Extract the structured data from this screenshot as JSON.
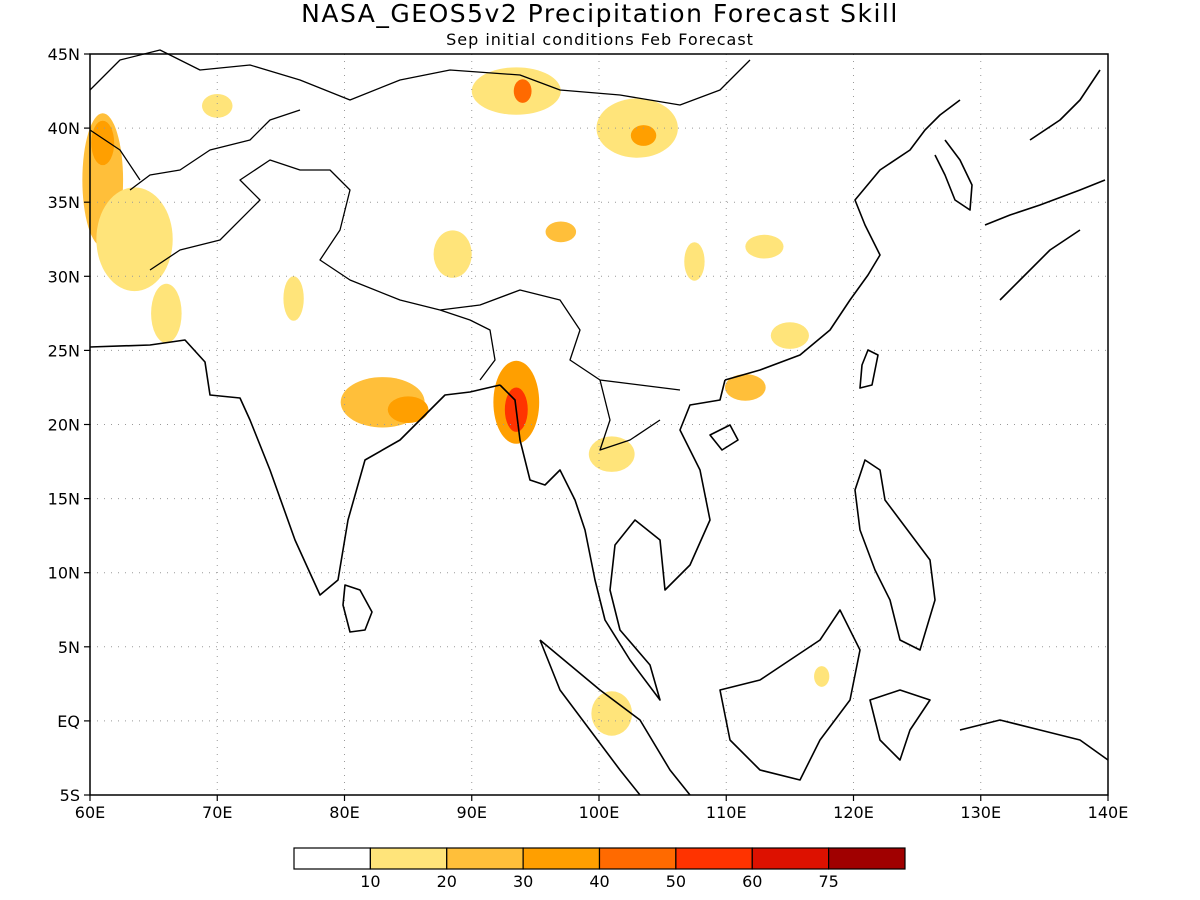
{
  "title": "NASA_GEOS5v2 Precipitation Forecast Skill",
  "subtitle": "Sep initial conditions  Feb Forecast",
  "axes": {
    "lon_range": [
      60,
      140
    ],
    "lat_range": [
      -5,
      45
    ],
    "x_ticks": [
      {
        "value": 60,
        "label": "60E"
      },
      {
        "value": 70,
        "label": "70E"
      },
      {
        "value": 80,
        "label": "80E"
      },
      {
        "value": 90,
        "label": "90E"
      },
      {
        "value": 100,
        "label": "100E"
      },
      {
        "value": 110,
        "label": "110E"
      },
      {
        "value": 120,
        "label": "120E"
      },
      {
        "value": 130,
        "label": "130E"
      },
      {
        "value": 140,
        "label": "140E"
      }
    ],
    "y_ticks": [
      {
        "value": 45,
        "label": "45N"
      },
      {
        "value": 40,
        "label": "40N"
      },
      {
        "value": 35,
        "label": "35N"
      },
      {
        "value": 30,
        "label": "30N"
      },
      {
        "value": 25,
        "label": "25N"
      },
      {
        "value": 20,
        "label": "20N"
      },
      {
        "value": 15,
        "label": "15N"
      },
      {
        "value": 10,
        "label": "10N"
      },
      {
        "value": 5,
        "label": "5N"
      },
      {
        "value": 0,
        "label": "EQ"
      },
      {
        "value": -5,
        "label": "5S"
      }
    ],
    "grid": "dotted"
  },
  "colorbar": {
    "colors": [
      "#ffffff",
      "#ffe47a",
      "#ffbf3a",
      "#ff9f00",
      "#ff6a00",
      "#ff3300",
      "#dd1100",
      "#a00000"
    ],
    "labels": [
      "10",
      "20",
      "30",
      "40",
      "50",
      "60",
      "75"
    ]
  },
  "skill_regions": [
    {
      "name": "iran-west-edge",
      "lon": 61.0,
      "lat": 36.5,
      "rx": 1.6,
      "ry": 4.5,
      "level": 2
    },
    {
      "name": "iran-west-core",
      "lon": 61.0,
      "lat": 39.0,
      "rx": 0.9,
      "ry": 1.5,
      "level": 3
    },
    {
      "name": "iran-afghan",
      "lon": 63.5,
      "lat": 32.5,
      "rx": 3.0,
      "ry": 3.5,
      "level": 1
    },
    {
      "name": "pakistan",
      "lon": 66.0,
      "lat": 27.5,
      "rx": 1.2,
      "ry": 2.0,
      "level": 1
    },
    {
      "name": "kazakh-south",
      "lon": 70.0,
      "lat": 41.5,
      "rx": 1.2,
      "ry": 0.8,
      "level": 1
    },
    {
      "name": "mongolia-west",
      "lon": 93.5,
      "lat": 42.5,
      "rx": 3.5,
      "ry": 1.6,
      "level": 1
    },
    {
      "name": "mongolia-west-core",
      "lon": 94.0,
      "lat": 42.5,
      "rx": 0.7,
      "ry": 0.8,
      "level": 4
    },
    {
      "name": "mongolia-central",
      "lon": 103.0,
      "lat": 40.0,
      "rx": 3.2,
      "ry": 2.0,
      "level": 1
    },
    {
      "name": "mongolia-central-core",
      "lon": 103.5,
      "lat": 39.5,
      "rx": 1.0,
      "ry": 0.7,
      "level": 3
    },
    {
      "name": "tibet-west",
      "lon": 88.5,
      "lat": 31.5,
      "rx": 1.5,
      "ry": 1.6,
      "level": 1
    },
    {
      "name": "tibet-central",
      "lon": 97.0,
      "lat": 33.0,
      "rx": 1.2,
      "ry": 0.7,
      "level": 2
    },
    {
      "name": "gansu",
      "lon": 107.5,
      "lat": 31.0,
      "rx": 0.8,
      "ry": 1.3,
      "level": 1
    },
    {
      "name": "sichuan-east",
      "lon": 113.0,
      "lat": 32.0,
      "rx": 1.5,
      "ry": 0.8,
      "level": 1
    },
    {
      "name": "fujian",
      "lon": 115.0,
      "lat": 26.0,
      "rx": 1.5,
      "ry": 0.9,
      "level": 1
    },
    {
      "name": "guangdong",
      "lon": 111.5,
      "lat": 22.5,
      "rx": 1.6,
      "ry": 0.9,
      "level": 2
    },
    {
      "name": "india-north",
      "lon": 76.0,
      "lat": 28.5,
      "rx": 0.8,
      "ry": 1.5,
      "level": 1
    },
    {
      "name": "india-east",
      "lon": 83.0,
      "lat": 21.5,
      "rx": 3.3,
      "ry": 1.7,
      "level": 2
    },
    {
      "name": "india-east-core",
      "lon": 85.0,
      "lat": 21.0,
      "rx": 1.6,
      "ry": 0.9,
      "level": 3
    },
    {
      "name": "myanmar-west",
      "lon": 93.5,
      "lat": 21.5,
      "rx": 1.8,
      "ry": 2.8,
      "level": 3
    },
    {
      "name": "myanmar-west-core",
      "lon": 93.5,
      "lat": 21.0,
      "rx": 0.9,
      "ry": 1.5,
      "level": 5
    },
    {
      "name": "laos",
      "lon": 101.0,
      "lat": 18.0,
      "rx": 1.8,
      "ry": 1.2,
      "level": 1
    },
    {
      "name": "sumatra",
      "lon": 101.0,
      "lat": 0.5,
      "rx": 1.6,
      "ry": 1.5,
      "level": 1
    },
    {
      "name": "borneo",
      "lon": 117.5,
      "lat": 3.0,
      "rx": 0.6,
      "ry": 0.7,
      "level": 1
    }
  ]
}
